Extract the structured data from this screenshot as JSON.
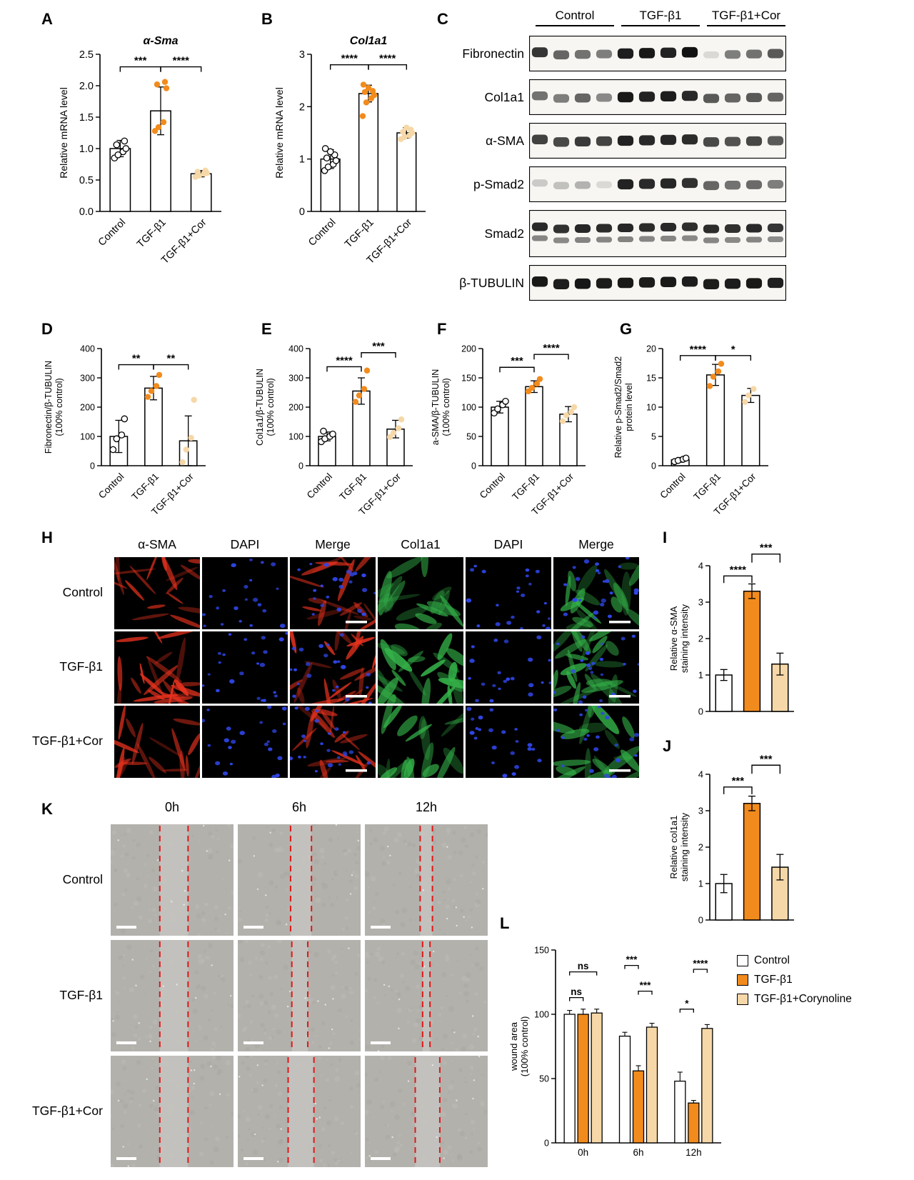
{
  "panel_labels": {
    "A": "A",
    "B": "B",
    "C": "C",
    "D": "D",
    "E": "E",
    "F": "F",
    "G": "G",
    "H": "H",
    "I": "I",
    "J": "J",
    "K": "K",
    "L": "L"
  },
  "colors": {
    "tgf_orange": "#F28B1D",
    "cor_peach": "#F6D8A8",
    "dapi_blue": "#2F46E8",
    "sma_red": "#E8321E",
    "col1a1_green": "#35B54A",
    "wound_line_red": "#E01818"
  },
  "chart_data": [
    {
      "panel": "A",
      "type": "bar",
      "title": "α-Sma",
      "ylabel": "Relative mRNA level",
      "ylim": [
        0,
        2.5
      ],
      "yticks": [
        "0.0",
        "0.5",
        "1.0",
        "1.5",
        "2.0",
        "2.5"
      ],
      "categories": [
        "Control",
        "TGF-β1",
        "TGF-β1+Cor"
      ],
      "values": [
        1.0,
        1.6,
        0.6
      ],
      "errors": [
        0.13,
        0.38,
        0.05
      ],
      "bar_colors": [
        "#ffffff",
        "#ffffff",
        "#ffffff"
      ],
      "point_colors": [
        "open",
        "#F28B1D",
        "#F6D8A8"
      ],
      "points": [
        [
          0.85,
          0.9,
          0.95,
          1.0,
          1.06,
          1.12
        ],
        [
          1.28,
          1.34,
          1.42,
          1.96,
          2.02,
          2.06
        ],
        [
          0.55,
          0.57,
          0.6,
          0.61,
          0.63,
          0.65
        ]
      ],
      "sig": [
        {
          "a": 0,
          "b": 1,
          "label": "***",
          "y": 2.3
        },
        {
          "a": 1,
          "b": 2,
          "label": "****",
          "y": 2.3
        }
      ]
    },
    {
      "panel": "B",
      "type": "bar",
      "title": "Col1a1",
      "ylabel": "Relative mRNA level",
      "ylim": [
        0,
        3
      ],
      "yticks": [
        "0",
        "1",
        "2",
        "3"
      ],
      "categories": [
        "Control",
        "TGF-β1",
        "TGF-β1+Cor"
      ],
      "values": [
        1.0,
        2.25,
        1.5
      ],
      "errors": [
        0.18,
        0.16,
        0.1
      ],
      "bar_colors": [
        "#ffffff",
        "#ffffff",
        "#ffffff"
      ],
      "point_colors": [
        "open",
        "#F28B1D",
        "#F6D8A8"
      ],
      "points": [
        [
          0.78,
          0.85,
          0.9,
          0.97,
          1.02,
          1.08,
          1.14,
          1.2
        ],
        [
          1.82,
          2.08,
          2.16,
          2.22,
          2.28,
          2.3,
          2.36,
          2.42
        ],
        [
          1.38,
          1.42,
          1.45,
          1.5,
          1.52,
          1.56,
          1.6
        ]
      ],
      "sig": [
        {
          "a": 0,
          "b": 1,
          "label": "****",
          "y": 2.8
        },
        {
          "a": 1,
          "b": 2,
          "label": "****",
          "y": 2.8
        }
      ]
    },
    {
      "panel": "D",
      "type": "bar",
      "ylabel": "Fibronectin/β-TUBULIN\n(100% control)",
      "ylim": [
        0,
        400
      ],
      "yticks": [
        "0",
        "100",
        "200",
        "300",
        "400"
      ],
      "categories": [
        "Control",
        "TGF-β1",
        "TGF-β1+Cor"
      ],
      "values": [
        100,
        265,
        85
      ],
      "errors": [
        55,
        40,
        85
      ],
      "bar_colors": [
        "#ffffff",
        "#ffffff",
        "#ffffff"
      ],
      "point_colors": [
        "open",
        "#F28B1D",
        "#F6D8A8"
      ],
      "points": [
        [
          55,
          92,
          105,
          160
        ],
        [
          235,
          255,
          272,
          310
        ],
        [
          12,
          55,
          95,
          225
        ]
      ],
      "sig": [
        {
          "a": 0,
          "b": 1,
          "label": "**",
          "y": 345
        },
        {
          "a": 1,
          "b": 2,
          "label": "**",
          "y": 345
        }
      ]
    },
    {
      "panel": "E",
      "type": "bar",
      "ylabel": "Col1a1/β-TUBULIN\n(100% control)",
      "ylim": [
        0,
        400
      ],
      "yticks": [
        "0",
        "100",
        "200",
        "300",
        "400"
      ],
      "categories": [
        "Control",
        "TGF-β1",
        "TGF-β1+Cor"
      ],
      "values": [
        100,
        255,
        125
      ],
      "errors": [
        15,
        45,
        30
      ],
      "bar_colors": [
        "#ffffff",
        "#ffffff",
        "#ffffff"
      ],
      "point_colors": [
        "open",
        "#F28B1D",
        "#F6D8A8"
      ],
      "points": [
        [
          82,
          92,
          100,
          108,
          118
        ],
        [
          218,
          240,
          262,
          325
        ],
        [
          98,
          112,
          128,
          158
        ]
      ],
      "sig": [
        {
          "a": 0,
          "b": 1,
          "label": "****",
          "y": 338
        },
        {
          "a": 1,
          "b": 2,
          "label": "***",
          "y": 386
        }
      ]
    },
    {
      "panel": "F",
      "type": "bar",
      "ylabel": "a-SMA/β-TUBULIN\n(100% control)",
      "ylim": [
        0,
        200
      ],
      "yticks": [
        "0",
        "50",
        "100",
        "150",
        "200"
      ],
      "categories": [
        "Control",
        "TGF-β1",
        "TGF-β1+Cor"
      ],
      "values": [
        100,
        135,
        88
      ],
      "errors": [
        10,
        10,
        13
      ],
      "bar_colors": [
        "#ffffff",
        "#ffffff",
        "#ffffff"
      ],
      "point_colors": [
        "open",
        "#F28B1D",
        "#F6D8A8"
      ],
      "points": [
        [
          90,
          97,
          104,
          110
        ],
        [
          127,
          133,
          140,
          148
        ],
        [
          76,
          86,
          92,
          100
        ]
      ],
      "sig": [
        {
          "a": 0,
          "b": 1,
          "label": "***",
          "y": 168
        },
        {
          "a": 1,
          "b": 2,
          "label": "****",
          "y": 190
        }
      ]
    },
    {
      "panel": "G",
      "type": "bar",
      "ylabel": "Relative p-Smad2/Smad2\nprotein level",
      "ylim": [
        0,
        20
      ],
      "yticks": [
        "0",
        "5",
        "10",
        "15",
        "20"
      ],
      "categories": [
        "Control",
        "TGF-β1",
        "TGF-β1+Cor"
      ],
      "values": [
        1.0,
        15.5,
        12.0
      ],
      "errors": [
        0.4,
        1.8,
        1.2
      ],
      "bar_colors": [
        "#ffffff",
        "#ffffff",
        "#ffffff"
      ],
      "point_colors": [
        "open",
        "#F28B1D",
        "#F6D8A8"
      ],
      "points": [
        [
          0.7,
          0.9,
          1.1,
          1.3
        ],
        [
          13.6,
          15.2,
          16.1,
          17.4
        ],
        [
          10.9,
          12.0,
          13.1
        ]
      ],
      "sig": [
        {
          "a": 0,
          "b": 1,
          "label": "****",
          "y": 18.8
        },
        {
          "a": 1,
          "b": 2,
          "label": "*",
          "y": 18.8
        }
      ]
    },
    {
      "panel": "I",
      "type": "bar",
      "ylabel": "Relative α-SMA\nstaining intensity",
      "ylim": [
        0,
        4
      ],
      "yticks": [
        "0",
        "1",
        "2",
        "3",
        "4"
      ],
      "categories": [
        "Control",
        "TGF-β1",
        "TGF-β1+Cor"
      ],
      "hide_cat_labels": true,
      "values": [
        1.0,
        3.3,
        1.3
      ],
      "errors": [
        0.15,
        0.2,
        0.3
      ],
      "bar_colors": [
        "#ffffff",
        "#F28B1D",
        "#F6D8A8"
      ],
      "sig": [
        {
          "a": 0,
          "b": 1,
          "label": "****",
          "y": 3.72,
          "d": 10
        },
        {
          "a": 1,
          "b": 2,
          "label": "***",
          "y": 4.32,
          "d": 12
        }
      ]
    },
    {
      "panel": "J",
      "type": "bar",
      "ylabel": "Relative col1a1\nstaining intensity",
      "ylim": [
        0,
        4
      ],
      "yticks": [
        "0",
        "1",
        "2",
        "3",
        "4"
      ],
      "categories": [
        "Control",
        "TGF-β1",
        "TGF-β1+Cor"
      ],
      "hide_cat_labels": true,
      "values": [
        1.0,
        3.2,
        1.45
      ],
      "errors": [
        0.25,
        0.2,
        0.35
      ],
      "bar_colors": [
        "#ffffff",
        "#F28B1D",
        "#F6D8A8"
      ],
      "sig": [
        {
          "a": 0,
          "b": 1,
          "label": "***",
          "y": 3.65,
          "d": 10
        },
        {
          "a": 1,
          "b": 2,
          "label": "***",
          "y": 4.25,
          "d": 12
        }
      ]
    },
    {
      "panel": "L",
      "type": "grouped-bar",
      "ylabel": "wound area\n(100% control)",
      "ylim": [
        0,
        150
      ],
      "yticks": [
        "0",
        "50",
        "100",
        "150"
      ],
      "categories": [
        "0h",
        "6h",
        "12h"
      ],
      "series": [
        {
          "name": "Control",
          "color": "#ffffff",
          "values": [
            100,
            83,
            48
          ],
          "errors": [
            3,
            3,
            7
          ]
        },
        {
          "name": "TGF-β1",
          "color": "#F28B1D",
          "values": [
            100,
            56,
            31
          ],
          "errors": [
            4,
            4,
            2
          ]
        },
        {
          "name": "TGF-β1+Corynoline",
          "color": "#F6D8A8",
          "values": [
            101,
            90,
            89
          ],
          "errors": [
            3,
            3,
            3
          ]
        }
      ],
      "sig": [
        {
          "group": 0,
          "a": 0,
          "b": 1,
          "label": "ns",
          "y": 113
        },
        {
          "group": 0,
          "a": 0,
          "b": 2,
          "label": "ns",
          "y": 133
        },
        {
          "group": 1,
          "a": 0,
          "b": 1,
          "label": "***",
          "y": 138
        },
        {
          "group": 1,
          "a": 1,
          "b": 2,
          "label": "***",
          "y": 118
        },
        {
          "group": 2,
          "a": 0,
          "b": 1,
          "label": "*",
          "y": 104
        },
        {
          "group": 2,
          "a": 1,
          "b": 2,
          "label": "****",
          "y": 135
        }
      ]
    }
  ],
  "western_blot": {
    "groups": [
      "Control",
      "TGF-β1",
      "TGF-β1+Cor"
    ],
    "lanes_per_group": 4,
    "rows": [
      {
        "label": "Fibronectin",
        "double": false,
        "intensities": [
          0.8,
          0.6,
          0.55,
          0.5,
          0.9,
          0.92,
          0.88,
          0.95,
          0.12,
          0.5,
          0.55,
          0.65
        ]
      },
      {
        "label": "Col1a1",
        "double": false,
        "intensities": [
          0.55,
          0.5,
          0.6,
          0.45,
          0.92,
          0.88,
          0.9,
          0.85,
          0.65,
          0.6,
          0.65,
          0.6
        ]
      },
      {
        "label": "α-SMA",
        "double": false,
        "intensities": [
          0.75,
          0.72,
          0.78,
          0.74,
          0.88,
          0.85,
          0.86,
          0.84,
          0.72,
          0.68,
          0.73,
          0.65
        ]
      },
      {
        "label": "p-Smad2",
        "double": false,
        "intensities": [
          0.18,
          0.22,
          0.28,
          0.12,
          0.88,
          0.85,
          0.86,
          0.82,
          0.6,
          0.55,
          0.58,
          0.5
        ]
      },
      {
        "label": "Smad2",
        "double": true,
        "intensities": [
          0.85,
          0.82,
          0.86,
          0.84,
          0.86,
          0.84,
          0.85,
          0.83,
          0.84,
          0.82,
          0.85,
          0.8
        ]
      },
      {
        "label": "β-TUBULIN",
        "double": false,
        "intensities": [
          0.92,
          0.9,
          0.93,
          0.91,
          0.92,
          0.91,
          0.92,
          0.9,
          0.91,
          0.9,
          0.92,
          0.89
        ]
      }
    ]
  },
  "immunofluorescence": {
    "columns": [
      "α-SMA",
      "DAPI",
      "Merge",
      "Col1a1",
      "DAPI",
      "Merge"
    ],
    "rows": [
      "Control",
      "TGF-β1",
      "TGF-β1+Cor"
    ],
    "row_intensities": [
      0.55,
      1.0,
      0.65
    ],
    "cell_types": [
      "red",
      "blue",
      "red+blue",
      "green",
      "blue",
      "green+blue"
    ]
  },
  "wound_assay": {
    "columns": [
      "0h",
      "6h",
      "12h"
    ],
    "rows": [
      "Control",
      "TGF-β1",
      "TGF-β1+Cor"
    ],
    "gap_fractions": [
      [
        [
          0.4,
          0.63
        ],
        [
          0.43,
          0.6
        ],
        [
          0.45,
          0.55
        ]
      ],
      [
        [
          0.4,
          0.63
        ],
        [
          0.44,
          0.57
        ],
        [
          0.47,
          0.53
        ]
      ],
      [
        [
          0.4,
          0.63
        ],
        [
          0.41,
          0.62
        ],
        [
          0.41,
          0.61
        ]
      ]
    ]
  }
}
